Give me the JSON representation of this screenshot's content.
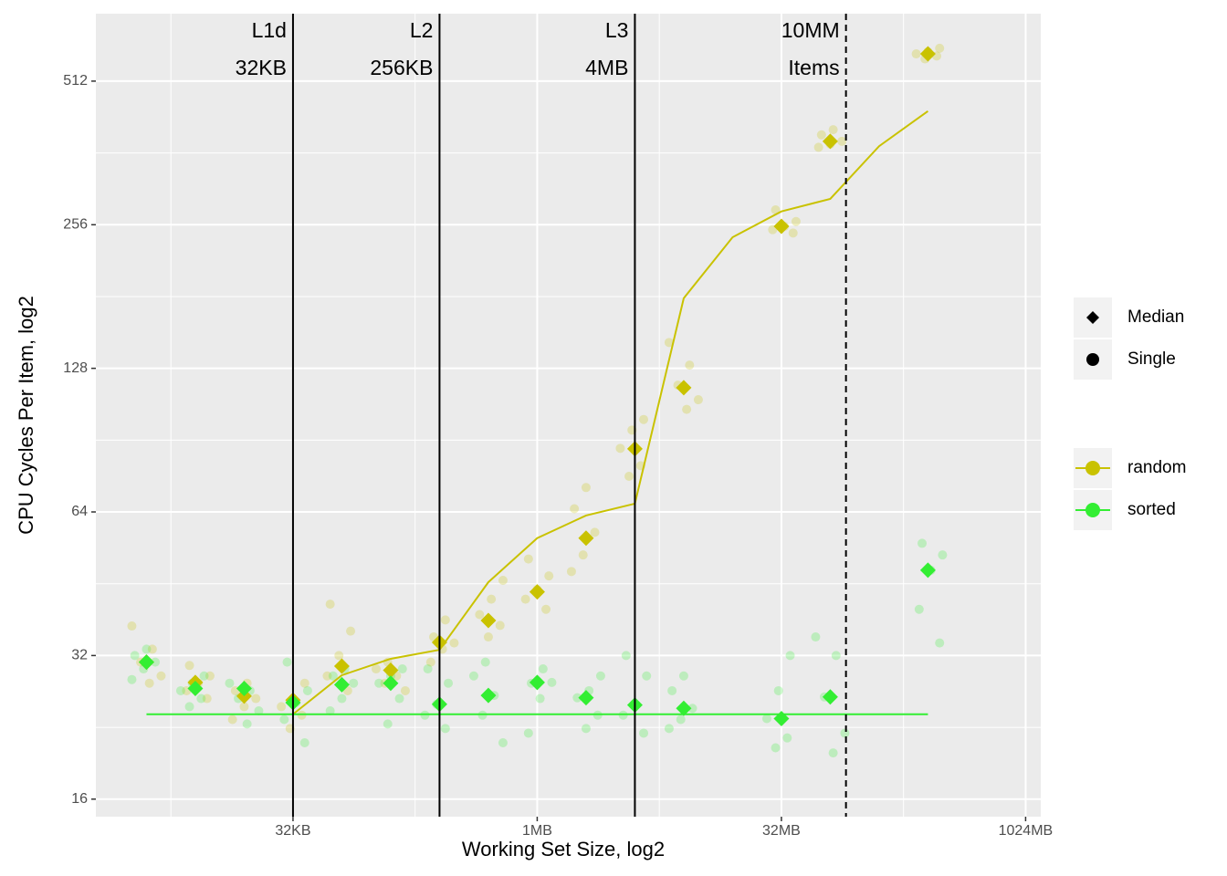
{
  "chart_data": {
    "type": "scatter",
    "xlabel": "Working Set Size, log2",
    "ylabel": "CPU Cycles Per Item, log2",
    "xscale": "log2",
    "yscale": "log2",
    "grid": true,
    "xlim": [
      1.95,
      1300000
    ],
    "ylim": [
      14.7,
      709
    ],
    "xticks": [
      {
        "value": 32,
        "label": "32KB"
      },
      {
        "value": 1024,
        "label": "1MB"
      },
      {
        "value": 32768,
        "label": "32MB"
      },
      {
        "value": 1048576,
        "label": "1024MB"
      }
    ],
    "yticks": [
      16,
      32,
      64,
      128,
      256,
      512
    ],
    "shape_legend": [
      "Median",
      "Single"
    ],
    "x": [
      4,
      8,
      16,
      32,
      64,
      128,
      256,
      512,
      1024,
      2048,
      4096,
      8192,
      32768,
      65536,
      262144
    ],
    "series": [
      {
        "name": "random",
        "color": "#c9c200",
        "medians": [
          31.0,
          28.1,
          26.3,
          25.8,
          30.4,
          29.8,
          34.1,
          37.9,
          43.5,
          56.4,
          86.8,
          116.6,
          254,
          383,
          584
        ],
        "singles": [
          [
            36.9,
            33,
            31,
            29,
            28
          ],
          [
            30.5,
            29,
            28,
            27,
            26
          ],
          [
            28,
            27,
            26,
            25,
            23.5
          ],
          [
            28,
            26,
            25,
            24,
            22.5
          ],
          [
            41,
            36,
            32,
            29,
            27
          ],
          [
            31,
            30,
            29,
            28,
            27
          ],
          [
            38,
            35,
            34,
            33,
            31
          ],
          [
            46,
            42,
            39,
            37,
            35
          ],
          [
            51,
            47,
            44,
            42,
            40
          ],
          [
            72,
            65,
            58,
            52,
            48
          ],
          [
            100,
            95,
            87,
            80,
            76
          ],
          [
            145,
            130,
            118,
            110,
            105
          ],
          [
            275,
            260,
            254,
            250,
            246
          ],
          [
            405,
            395,
            383,
            378,
            372
          ],
          [
            600,
            590,
            584,
            578,
            570
          ]
        ],
        "line": {
          "x": [
            32,
            64,
            128,
            256,
            512,
            1024,
            2048,
            4096,
            8192,
            16384,
            32768,
            65536,
            131072,
            262144
          ],
          "y": [
            24.1,
            29.1,
            31.5,
            32.9,
            45.6,
            56.4,
            62.9,
            66.6,
            179.5,
            241,
            273,
            290,
            374,
            443
          ]
        }
      },
      {
        "name": "sorted",
        "color": "#33ee33",
        "medians": [
          31.0,
          27.3,
          27.3,
          25.5,
          27.8,
          28.0,
          25.3,
          26.4,
          28.1,
          26.1,
          25.2,
          24.8,
          23.6,
          26.2,
          48.3
        ],
        "singles": [
          [
            33,
            32,
            31,
            30,
            28.5
          ],
          [
            29,
            28,
            27,
            26,
            25
          ],
          [
            28,
            27,
            26,
            24.5,
            23
          ],
          [
            31,
            27,
            25.5,
            23.5,
            21
          ],
          [
            30,
            29,
            28,
            26,
            24.5
          ],
          [
            30,
            29,
            28,
            26,
            23
          ],
          [
            30,
            28,
            25.3,
            24,
            22.5
          ],
          [
            31,
            29,
            26.4,
            24,
            21
          ],
          [
            30,
            28,
            28.1,
            26,
            22
          ],
          [
            29,
            27,
            26.1,
            24,
            22.5
          ],
          [
            32,
            29,
            25.2,
            24,
            22
          ],
          [
            29,
            27,
            24.8,
            23.5,
            22.5
          ],
          [
            32,
            27,
            23.6,
            21.5,
            20.5
          ],
          [
            35,
            32,
            26.2,
            22,
            20
          ],
          [
            55,
            52,
            48.3,
            40,
            34
          ]
        ],
        "line": {
          "x": [
            4,
            262144
          ],
          "y": [
            24.1,
            24.1
          ]
        }
      }
    ],
    "annotations": [
      {
        "x": 32,
        "lines": [
          "L1d",
          "32KB"
        ],
        "dashed": false
      },
      {
        "x": 256,
        "lines": [
          "L2",
          "256KB"
        ],
        "dashed": false
      },
      {
        "x": 4096,
        "lines": [
          "L3",
          "4MB"
        ],
        "dashed": false
      },
      {
        "x": 81920,
        "lines": [
          "10MM",
          "Items"
        ],
        "dashed": true
      }
    ]
  }
}
